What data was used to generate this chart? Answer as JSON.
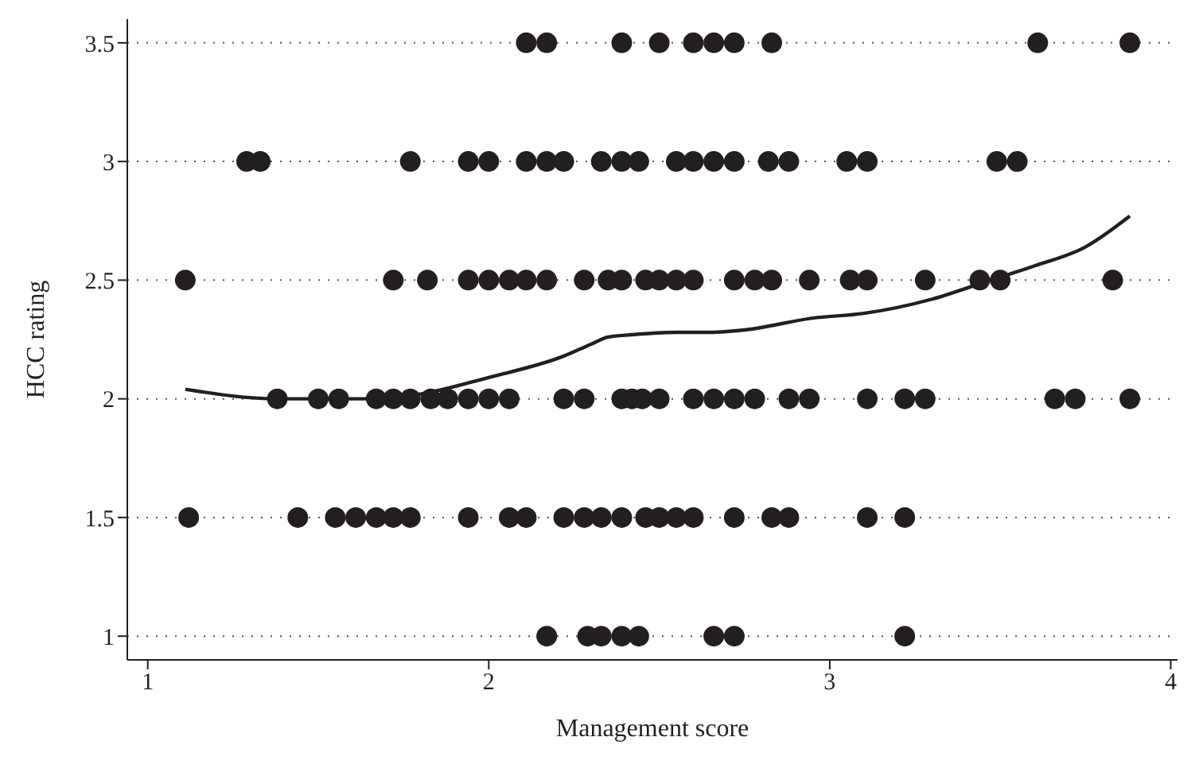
{
  "chart_data": {
    "type": "scatter",
    "xlabel": "Management score",
    "ylabel": "HCC rating",
    "xlim": [
      0.94,
      4.02
    ],
    "xticks": [
      1,
      2,
      3,
      4
    ],
    "ylim": [
      0.9,
      3.6
    ],
    "yticks": [
      1,
      1.5,
      2,
      2.5,
      3,
      3.5
    ],
    "grid": "y",
    "series": [
      {
        "color": "#231f20",
        "marker": "circle",
        "x": [
          2.11,
          2.17,
          2.39,
          2.5,
          2.6,
          2.66,
          2.72,
          2.83,
          3.61,
          3.88,
          1.29,
          1.33,
          1.77,
          1.94,
          2.0,
          2.11,
          2.17,
          2.22,
          2.33,
          2.39,
          2.44,
          2.55,
          2.6,
          2.66,
          2.72,
          2.82,
          2.88,
          3.05,
          3.11,
          3.49,
          3.55,
          1.11,
          1.72,
          1.82,
          1.94,
          2.0,
          2.06,
          2.11,
          2.17,
          2.28,
          2.35,
          2.39,
          2.46,
          2.5,
          2.55,
          2.6,
          2.72,
          2.78,
          2.83,
          2.94,
          3.06,
          3.11,
          3.28,
          3.44,
          3.5,
          3.83,
          1.38,
          1.5,
          1.56,
          1.67,
          1.72,
          1.77,
          1.83,
          1.88,
          1.94,
          2.0,
          2.06,
          2.22,
          2.28,
          2.39,
          2.42,
          2.45,
          2.5,
          2.6,
          2.66,
          2.72,
          2.78,
          2.88,
          2.94,
          3.11,
          3.22,
          3.28,
          3.66,
          3.72,
          3.88,
          1.12,
          1.44,
          1.55,
          1.61,
          1.67,
          1.72,
          1.77,
          1.94,
          2.06,
          2.11,
          2.22,
          2.28,
          2.33,
          2.39,
          2.46,
          2.5,
          2.55,
          2.6,
          2.72,
          2.83,
          2.88,
          3.11,
          3.22,
          2.17,
          2.29,
          2.33,
          2.39,
          2.44,
          2.66,
          2.72,
          3.22
        ],
        "values": [
          3.5,
          3.5,
          3.5,
          3.5,
          3.5,
          3.5,
          3.5,
          3.5,
          3.5,
          3.5,
          3,
          3,
          3,
          3,
          3,
          3,
          3,
          3,
          3,
          3,
          3,
          3,
          3,
          3,
          3,
          3,
          3,
          3,
          3,
          3,
          3,
          2.5,
          2.5,
          2.5,
          2.5,
          2.5,
          2.5,
          2.5,
          2.5,
          2.5,
          2.5,
          2.5,
          2.5,
          2.5,
          2.5,
          2.5,
          2.5,
          2.5,
          2.5,
          2.5,
          2.5,
          2.5,
          2.5,
          2.5,
          2.5,
          2.5,
          2,
          2,
          2,
          2,
          2,
          2,
          2,
          2,
          2,
          2,
          2,
          2,
          2,
          2,
          2,
          2,
          2,
          2,
          2,
          2,
          2,
          2,
          2,
          2,
          2,
          2,
          2,
          2,
          2,
          1.5,
          1.5,
          1.5,
          1.5,
          1.5,
          1.5,
          1.5,
          1.5,
          1.5,
          1.5,
          1.5,
          1.5,
          1.5,
          1.5,
          1.5,
          1.5,
          1.5,
          1.5,
          1.5,
          1.5,
          1.5,
          1.5,
          1.5,
          1,
          1,
          1,
          1,
          1,
          1,
          1,
          1
        ]
      },
      {
        "type": "line",
        "color": "#231f20",
        "marker": "none",
        "line_style": "solid",
        "x": [
          1.11,
          1.38,
          1.65,
          1.8,
          2.0,
          2.22,
          2.3,
          2.35,
          2.42,
          2.55,
          2.65,
          2.75,
          2.95,
          3.1,
          3.3,
          3.45,
          3.6,
          3.75,
          3.88
        ],
        "values": [
          2.04,
          2.0,
          2.0,
          2.02,
          2.09,
          2.18,
          2.23,
          2.26,
          2.27,
          2.28,
          2.28,
          2.29,
          2.34,
          2.36,
          2.42,
          2.49,
          2.56,
          2.64,
          2.77
        ]
      }
    ]
  }
}
